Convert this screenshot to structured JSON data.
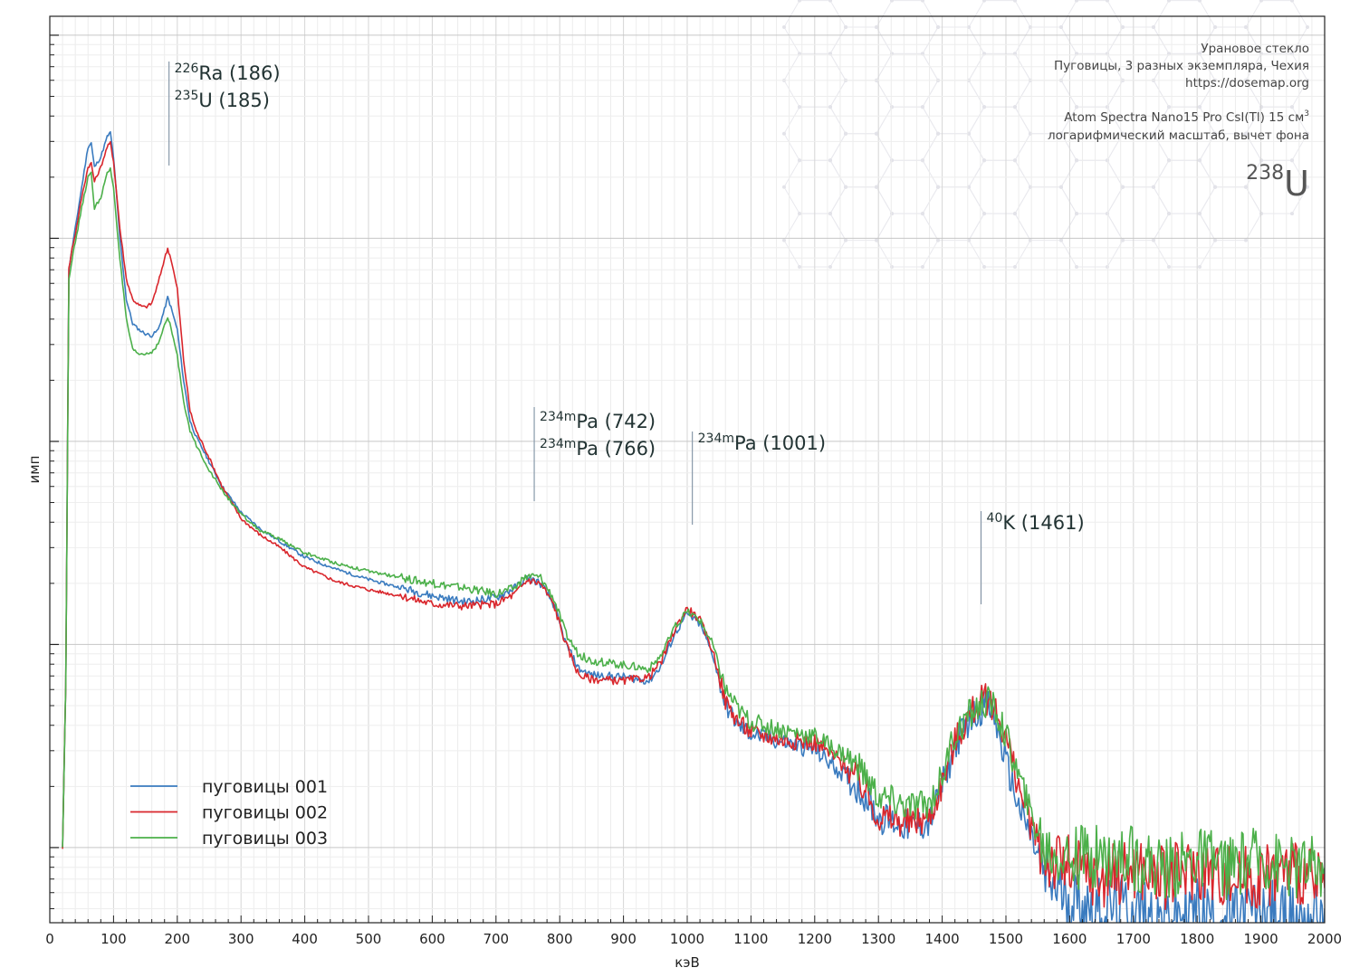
{
  "chart_data": {
    "type": "line",
    "xlabel": "кэВ",
    "ylabel": "имп",
    "xlim": [
      0,
      2000
    ],
    "ylim_log_decades": [
      0,
      3.65
    ],
    "y_scale": "log",
    "grid": true,
    "legend_placement": "bottom-left",
    "x_ticks": [
      "0",
      "100",
      "200",
      "300",
      "400",
      "500",
      "600",
      "700",
      "800",
      "900",
      "1000",
      "1100",
      "1200",
      "1300",
      "1400",
      "1500",
      "1600",
      "1700",
      "1800",
      "1900",
      "2000"
    ],
    "info_lines": [
      "Урановое стекло",
      "Пуговицы, 3 разных экземпляра, Чехия",
      "https://dosemap.org",
      "",
      "Atom Spectra Nano15 Pro CsI(Tl) 15 см",
      "логарифмический масштаб, вычет фона"
    ],
    "info_sup": "3",
    "isotope_badge": {
      "mass": "238",
      "symbol": "U"
    },
    "annotations": [
      {
        "x": 187,
        "lines": [
          {
            "sup": "226",
            "text": "Ra (186)"
          },
          {
            "sup": "235",
            "text": "U (185)"
          }
        ]
      },
      {
        "x": 760,
        "lines": [
          {
            "sup": "234m",
            "text": "Pa (742)"
          },
          {
            "sup": "234m",
            "text": "Pa (766)"
          }
        ]
      },
      {
        "x": 1008,
        "lines": [
          {
            "sup": "234m",
            "text": "Pa (1001)"
          }
        ]
      },
      {
        "x": 1461,
        "lines": [
          {
            "sup": "40",
            "text": "K (1461)"
          }
        ]
      }
    ],
    "series": [
      {
        "name": "пуговицы 001",
        "color": "#3a7bbf",
        "x": [
          20,
          25,
          30,
          35,
          40,
          50,
          60,
          65,
          70,
          80,
          90,
          95,
          100,
          110,
          120,
          130,
          140,
          150,
          160,
          170,
          180,
          185,
          190,
          200,
          210,
          220,
          230,
          250,
          270,
          300,
          330,
          360,
          400,
          450,
          500,
          550,
          600,
          650,
          700,
          730,
          750,
          770,
          790,
          810,
          830,
          850,
          900,
          940,
          960,
          980,
          1000,
          1020,
          1040,
          1060,
          1080,
          1100,
          1150,
          1200,
          1250,
          1280,
          1300,
          1350,
          1380,
          1400,
          1420,
          1440,
          1460,
          1470,
          1480,
          1500,
          1520,
          1540,
          1560,
          1600,
          1650,
          1700,
          1750,
          1800,
          1850,
          1900,
          1950,
          2000
        ],
        "y": [
          0.0,
          0.8,
          2.85,
          2.95,
          3.05,
          3.25,
          3.45,
          3.47,
          3.35,
          3.4,
          3.5,
          3.52,
          3.4,
          3.0,
          2.7,
          2.58,
          2.55,
          2.53,
          2.52,
          2.55,
          2.65,
          2.71,
          2.66,
          2.55,
          2.3,
          2.1,
          2.02,
          1.9,
          1.78,
          1.65,
          1.57,
          1.51,
          1.43,
          1.37,
          1.32,
          1.28,
          1.24,
          1.21,
          1.23,
          1.28,
          1.33,
          1.3,
          1.2,
          1.0,
          0.88,
          0.85,
          0.84,
          0.82,
          0.9,
          1.05,
          1.15,
          1.1,
          0.95,
          0.7,
          0.6,
          0.56,
          0.52,
          0.48,
          0.35,
          0.25,
          0.15,
          0.1,
          0.12,
          0.3,
          0.5,
          0.62,
          0.68,
          0.7,
          0.66,
          0.42,
          0.2,
          0.05,
          -0.15,
          -0.25,
          -0.3,
          -0.3,
          -0.35,
          -0.3,
          -0.35,
          -0.3,
          -0.35,
          -0.3
        ]
      },
      {
        "name": "пуговицы 002",
        "color": "#d9262c",
        "x": [
          20,
          25,
          30,
          35,
          40,
          50,
          60,
          65,
          70,
          80,
          90,
          95,
          100,
          110,
          120,
          130,
          140,
          150,
          160,
          170,
          180,
          185,
          190,
          200,
          210,
          220,
          230,
          250,
          270,
          300,
          330,
          360,
          400,
          450,
          500,
          550,
          600,
          650,
          700,
          730,
          750,
          770,
          790,
          810,
          830,
          850,
          900,
          940,
          960,
          980,
          1000,
          1020,
          1040,
          1060,
          1080,
          1100,
          1150,
          1200,
          1250,
          1280,
          1300,
          1350,
          1380,
          1400,
          1420,
          1440,
          1460,
          1470,
          1480,
          1500,
          1520,
          1540,
          1560,
          1600,
          1650,
          1700,
          1750,
          1800,
          1850,
          1900,
          1950,
          2000
        ],
        "y": [
          0.0,
          0.8,
          2.85,
          2.95,
          3.02,
          3.2,
          3.35,
          3.37,
          3.28,
          3.35,
          3.45,
          3.47,
          3.38,
          3.05,
          2.8,
          2.7,
          2.67,
          2.66,
          2.68,
          2.78,
          2.9,
          2.95,
          2.9,
          2.75,
          2.4,
          2.15,
          2.05,
          1.92,
          1.78,
          1.62,
          1.54,
          1.48,
          1.38,
          1.31,
          1.27,
          1.24,
          1.2,
          1.19,
          1.2,
          1.25,
          1.32,
          1.3,
          1.2,
          1.0,
          0.85,
          0.83,
          0.82,
          0.84,
          0.92,
          1.07,
          1.18,
          1.12,
          0.97,
          0.72,
          0.62,
          0.57,
          0.53,
          0.52,
          0.4,
          0.28,
          0.15,
          0.12,
          0.15,
          0.32,
          0.52,
          0.64,
          0.72,
          0.73,
          0.7,
          0.55,
          0.3,
          0.1,
          -0.05,
          -0.1,
          -0.15,
          -0.1,
          -0.15,
          -0.1,
          -0.15,
          -0.15,
          -0.1,
          -0.2
        ]
      },
      {
        "name": "пуговицы 003",
        "color": "#4cb04a",
        "x": [
          20,
          25,
          30,
          35,
          40,
          50,
          60,
          65,
          70,
          80,
          90,
          95,
          100,
          110,
          120,
          130,
          140,
          150,
          160,
          170,
          180,
          185,
          190,
          200,
          210,
          220,
          230,
          250,
          270,
          300,
          330,
          360,
          400,
          450,
          500,
          550,
          600,
          650,
          700,
          730,
          750,
          770,
          790,
          810,
          830,
          850,
          900,
          940,
          960,
          980,
          1000,
          1020,
          1040,
          1060,
          1080,
          1100,
          1150,
          1200,
          1250,
          1280,
          1300,
          1350,
          1380,
          1400,
          1420,
          1440,
          1460,
          1470,
          1480,
          1500,
          1520,
          1540,
          1560,
          1600,
          1650,
          1700,
          1750,
          1800,
          1850,
          1900,
          1950,
          2000
        ],
        "y": [
          0.0,
          0.8,
          2.8,
          2.9,
          2.98,
          3.15,
          3.3,
          3.32,
          3.15,
          3.2,
          3.32,
          3.34,
          3.25,
          2.9,
          2.6,
          2.45,
          2.43,
          2.43,
          2.44,
          2.48,
          2.57,
          2.61,
          2.56,
          2.42,
          2.2,
          2.05,
          1.98,
          1.86,
          1.76,
          1.64,
          1.56,
          1.52,
          1.45,
          1.4,
          1.36,
          1.33,
          1.3,
          1.28,
          1.25,
          1.28,
          1.34,
          1.33,
          1.23,
          1.05,
          0.95,
          0.92,
          0.9,
          0.88,
          0.95,
          1.08,
          1.16,
          1.12,
          1.0,
          0.78,
          0.68,
          0.62,
          0.58,
          0.55,
          0.45,
          0.35,
          0.25,
          0.2,
          0.22,
          0.35,
          0.55,
          0.65,
          0.7,
          0.72,
          0.7,
          0.55,
          0.35,
          0.15,
          0.0,
          -0.05,
          -0.05,
          -0.05,
          -0.1,
          -0.05,
          -0.1,
          -0.05,
          -0.1,
          -0.1
        ]
      }
    ]
  }
}
